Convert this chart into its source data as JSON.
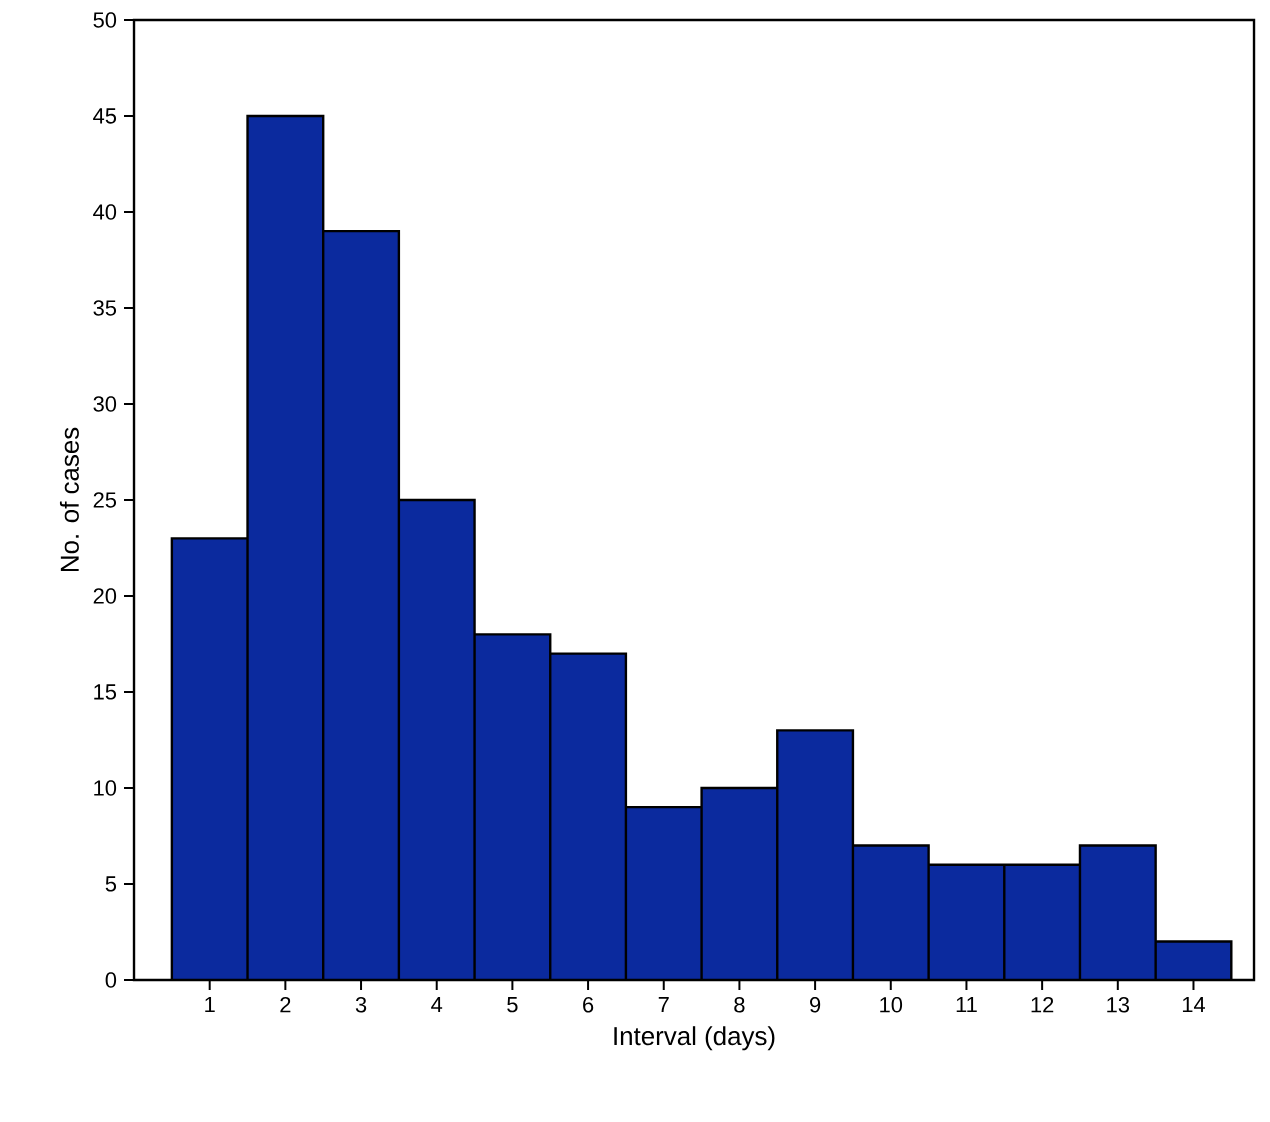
{
  "chart_data": {
    "type": "bar",
    "xlabel": "Interval (days)",
    "ylabel": "No. of cases",
    "categories": [
      "1",
      "2",
      "3",
      "4",
      "5",
      "6",
      "7",
      "8",
      "9",
      "10",
      "11",
      "12",
      "13",
      "14"
    ],
    "values": [
      23,
      45,
      39,
      25,
      18,
      17,
      9,
      10,
      13,
      7,
      6,
      6,
      7,
      2
    ],
    "color": "#0b2a9e",
    "ylim": [
      0,
      50
    ],
    "yticks": [
      0,
      5,
      10,
      15,
      20,
      25,
      30,
      35,
      40,
      45,
      50
    ],
    "grid": false
  }
}
